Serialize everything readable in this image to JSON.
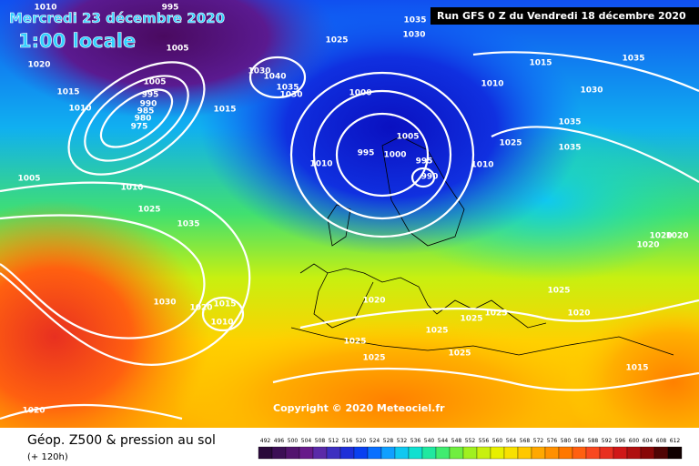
{
  "header": {
    "date": "Mercredi 23 décembre 2020",
    "time": "1:00 locale",
    "run": "Run GFS 0 Z du Vendredi 18 décembre 2020"
  },
  "copyright": "Copyright © 2020 Meteociel.fr",
  "legend": {
    "title": "Géop. Z500 & pression au sol",
    "subtitle": "(+ 120h)",
    "scale": [
      492,
      496,
      500,
      504,
      508,
      512,
      516,
      520,
      524,
      528,
      532,
      536,
      540,
      544,
      548,
      552,
      556,
      560,
      564,
      568,
      572,
      576,
      580,
      584,
      588,
      592,
      596,
      600,
      604,
      608,
      612
    ],
    "scale_colors": [
      "#2a0a3a",
      "#3c0f55",
      "#52146e",
      "#671a8a",
      "#5a2aa8",
      "#3d30c0",
      "#1e2fd8",
      "#0a40f0",
      "#0a70ff",
      "#10a0ff",
      "#10c8f0",
      "#10e0d0",
      "#20e8a0",
      "#40ec70",
      "#70ee40",
      "#a0f020",
      "#c8f010",
      "#e8f000",
      "#f8e000",
      "#ffc800",
      "#ffa800",
      "#ff9000",
      "#ff7800",
      "#ff6010",
      "#f84820",
      "#e83020",
      "#d01818",
      "#b01010",
      "#880808",
      "#500404",
      "#100000"
    ]
  },
  "isobar_labels": [
    "1010",
    "995",
    "1005",
    "1020",
    "1015",
    "1010",
    "1005",
    "995",
    "990",
    "985",
    "980",
    "975",
    "1035",
    "1030",
    "1025",
    "1030",
    "1040",
    "1035",
    "1030",
    "1015",
    "1015",
    "1010",
    "1035",
    "1030",
    "1000",
    "1035",
    "1025",
    "1035",
    "1005",
    "995",
    "1000",
    "995",
    "990",
    "1010",
    "1010",
    "1005",
    "1010",
    "1025",
    "1035",
    "1020",
    "1020",
    "1020",
    "1030",
    "1020",
    "1015",
    "1010",
    "1020",
    "1025",
    "1025",
    "1025",
    "1020",
    "1025",
    "1025",
    "1025",
    "1025",
    "1015",
    "1020"
  ]
}
